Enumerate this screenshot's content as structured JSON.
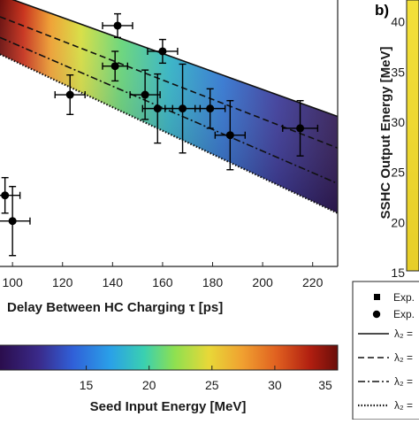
{
  "chart_data": {
    "type": "scatter",
    "panel_label": "b)",
    "xlabel": "Delay Between HC Charging τ [ps]",
    "xticks": [
      100,
      120,
      140,
      160,
      180,
      200,
      220
    ],
    "xlim": [
      95,
      230
    ],
    "ylim": [
      15,
      42
    ],
    "y_axis_right": {
      "label": "SSHC Output Energy [MeV]",
      "ticks": [
        15,
        20,
        25,
        30,
        35,
        40
      ]
    },
    "colorbar": {
      "label": "Seed Input Energy [MeV]",
      "ticks": [
        15,
        20,
        25,
        30,
        35
      ],
      "range": [
        8,
        35
      ]
    },
    "band": {
      "description": "lambda2 model band colored by seed input energy",
      "lines": [
        {
          "style": "solid",
          "legend": "λ₂ =",
          "x": [
            95,
            230
          ],
          "y": [
            42.5,
            30.2
          ]
        },
        {
          "style": "dashed",
          "legend": "λ₂ =",
          "x": [
            95,
            230
          ],
          "y": [
            40.3,
            27.0
          ]
        },
        {
          "style": "dashdot",
          "legend": "λ₂ =",
          "x": [
            95,
            230
          ],
          "y": [
            38.2,
            23.4
          ]
        },
        {
          "style": "dotted",
          "legend": "λ₂ =",
          "x": [
            95,
            230
          ],
          "y": [
            36.5,
            20.4
          ]
        }
      ]
    },
    "series": [
      {
        "marker": "circle",
        "legend": "Exp.",
        "points": [
          {
            "x": 142,
            "y": 39.4,
            "xerr": 6,
            "yerr": 1.2
          },
          {
            "x": 160,
            "y": 36.8,
            "xerr": 6,
            "yerr": 1.2
          },
          {
            "x": 141,
            "y": 35.3,
            "xerr": 5,
            "yerr": 1.5
          },
          {
            "x": 123,
            "y": 32.4,
            "xerr": 6,
            "yerr": 2.0
          },
          {
            "x": 153,
            "y": 32.4,
            "xerr": 6,
            "yerr": 2.5
          },
          {
            "x": 158,
            "y": 31.0,
            "xerr": 6,
            "yerr": 3.5
          },
          {
            "x": 168,
            "y": 31.0,
            "xerr": 7,
            "yerr": 4.5
          },
          {
            "x": 179,
            "y": 31.0,
            "xerr": 6,
            "yerr": 2.0
          },
          {
            "x": 187,
            "y": 28.3,
            "xerr": 6,
            "yerr": 3.5
          },
          {
            "x": 215,
            "y": 29.0,
            "xerr": 7,
            "yerr": 2.8
          },
          {
            "x": 97,
            "y": 22.2,
            "xerr": 6,
            "yerr": 1.8
          },
          {
            "x": 100,
            "y": 19.6,
            "xerr": 7,
            "yerr": 3.5
          }
        ]
      }
    ],
    "legend": {
      "entries": [
        {
          "symbol": "square",
          "text": "Exp."
        },
        {
          "symbol": "circle",
          "text": "Exp."
        },
        {
          "symbol": "solid",
          "text": "λ₂ ="
        },
        {
          "symbol": "dashed",
          "text": "λ₂ ="
        },
        {
          "symbol": "dashdot",
          "text": "λ₂ ="
        },
        {
          "symbol": "dotted",
          "text": "λ₂ ="
        }
      ]
    },
    "colors": {
      "gradient": [
        "#3b0f70",
        "#2c5ad6",
        "#2aa0e0",
        "#3fcf9a",
        "#a6e04a",
        "#f0c030",
        "#e86a20",
        "#b81e0e",
        "#6a0e0a"
      ],
      "right_colorbar": [
        "#e7ce28",
        "#f3e03a"
      ],
      "marker": "#000000"
    }
  }
}
